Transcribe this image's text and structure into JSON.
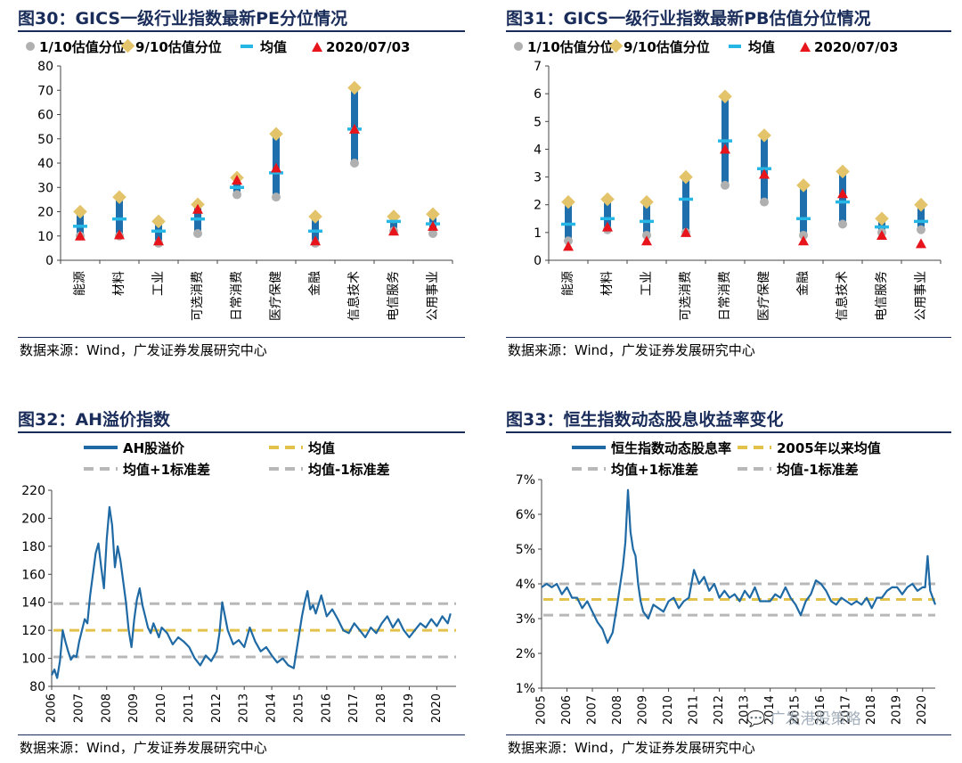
{
  "panels": [
    {
      "title": "图30：GICS一级行业指数最新PE分位情况",
      "source": "数据来源：Wind，广发证券发展研究中心"
    },
    {
      "title": "图31：GICS一级行业指数最新PB估值分位情况",
      "source": "数据来源：Wind，广发证券发展研究中心"
    },
    {
      "title": "图32：AH溢价指数",
      "source": "数据来源：Wind，广发证券发展研究中心"
    },
    {
      "title": "图33：恒生指数动态股息收益率变化",
      "source": "数据来源：Wind，广发证券发展研究中心"
    }
  ],
  "watermark": "广发港股策略",
  "colors": {
    "title": "#1a2d5a",
    "bar": "#1f6fad",
    "mean_tick": "#27b7e6",
    "p10": "#b0b0b0",
    "p90": "#e3c46a",
    "current": "#e8141b",
    "series": "#1f6aa5",
    "mean_line": "#e3c24c",
    "std_line": "#b8b8b8"
  },
  "chart_data": [
    {
      "type": "range",
      "title": "GICS一级行业指数最新PE分位情况",
      "legend": [
        "1/10估值分位",
        "9/10估值分位",
        "均值",
        "2020/07/03"
      ],
      "categories": [
        "能源",
        "材料",
        "工业",
        "可选消费",
        "日常消费",
        "医疗保健",
        "金融",
        "信息技术",
        "电信服务",
        "公用事业"
      ],
      "p10": [
        10,
        10,
        7,
        11,
        27,
        26,
        7,
        40,
        12,
        11
      ],
      "p90": [
        20,
        26,
        16,
        23,
        34,
        52,
        18,
        71,
        18,
        19
      ],
      "mean": [
        14,
        17,
        12,
        17,
        30,
        36,
        12,
        54,
        16,
        15
      ],
      "current": [
        10,
        10.5,
        8,
        21,
        33,
        38,
        8,
        54,
        12,
        14
      ],
      "ylim": [
        0,
        80
      ],
      "yticks": [
        0,
        10,
        20,
        30,
        40,
        50,
        60,
        70,
        80
      ],
      "ytick_labels": [
        "0",
        "10",
        "20",
        "30",
        "40",
        "50",
        "60",
        "70",
        "80"
      ]
    },
    {
      "type": "range",
      "title": "GICS一级行业指数最新PB估值分位情况",
      "legend": [
        "1/10估值分位",
        "9/10估值分位",
        "均值",
        "2020/07/03"
      ],
      "categories": [
        "能源",
        "材料",
        "工业",
        "可选消费",
        "日常消费",
        "医疗保健",
        "金融",
        "信息技术",
        "电信服务",
        "公用事业"
      ],
      "p10": [
        0.7,
        1.1,
        0.9,
        1.0,
        2.7,
        2.1,
        0.9,
        1.3,
        1.0,
        1.1
      ],
      "p90": [
        2.1,
        2.2,
        2.1,
        3.0,
        5.9,
        4.5,
        2.7,
        3.2,
        1.5,
        2.0
      ],
      "mean": [
        1.3,
        1.5,
        1.4,
        2.2,
        4.3,
        3.3,
        1.5,
        2.1,
        1.2,
        1.4
      ],
      "current": [
        0.5,
        1.2,
        0.7,
        1.0,
        4.0,
        3.1,
        0.7,
        2.4,
        0.9,
        0.6
      ],
      "ylim": [
        0,
        7
      ],
      "yticks": [
        0,
        1,
        2,
        3,
        4,
        5,
        6,
        7
      ],
      "ytick_labels": [
        "0",
        "1",
        "2",
        "3",
        "4",
        "5",
        "6",
        "7"
      ]
    },
    {
      "type": "line",
      "title": "AH溢价指数",
      "legend": [
        "AH股溢价",
        "均值",
        "均值+1标准差",
        "均值-1标准差"
      ],
      "x": [
        2006.0,
        2006.1,
        2006.2,
        2006.3,
        2006.4,
        2006.5,
        2006.6,
        2006.7,
        2006.8,
        2006.9,
        2007.0,
        2007.1,
        2007.2,
        2007.3,
        2007.4,
        2007.5,
        2007.6,
        2007.7,
        2007.8,
        2007.9,
        2008.0,
        2008.1,
        2008.2,
        2008.3,
        2008.4,
        2008.5,
        2008.6,
        2008.7,
        2008.8,
        2008.9,
        2009.0,
        2009.1,
        2009.2,
        2009.3,
        2009.4,
        2009.5,
        2009.6,
        2009.7,
        2009.8,
        2009.9,
        2010.0,
        2010.2,
        2010.4,
        2010.6,
        2010.8,
        2011.0,
        2011.2,
        2011.4,
        2011.6,
        2011.8,
        2012.0,
        2012.1,
        2012.2,
        2012.4,
        2012.6,
        2012.8,
        2013.0,
        2013.2,
        2013.4,
        2013.6,
        2013.8,
        2014.0,
        2014.2,
        2014.4,
        2014.6,
        2014.8,
        2015.0,
        2015.1,
        2015.2,
        2015.3,
        2015.4,
        2015.5,
        2015.6,
        2015.8,
        2016.0,
        2016.2,
        2016.4,
        2016.6,
        2016.8,
        2017.0,
        2017.2,
        2017.4,
        2017.6,
        2017.8,
        2018.0,
        2018.2,
        2018.4,
        2018.6,
        2018.8,
        2019.0,
        2019.2,
        2019.4,
        2019.6,
        2019.8,
        2020.0,
        2020.2,
        2020.4,
        2020.5
      ],
      "y": [
        88,
        92,
        86,
        98,
        120,
        112,
        105,
        99,
        102,
        101,
        112,
        120,
        128,
        125,
        145,
        160,
        175,
        182,
        165,
        150,
        185,
        208,
        195,
        165,
        180,
        170,
        155,
        140,
        120,
        108,
        128,
        142,
        150,
        138,
        130,
        122,
        118,
        125,
        120,
        115,
        122,
        118,
        110,
        115,
        112,
        108,
        100,
        95,
        102,
        98,
        105,
        118,
        140,
        120,
        110,
        113,
        108,
        122,
        112,
        105,
        108,
        102,
        97,
        100,
        95,
        93,
        118,
        130,
        140,
        148,
        135,
        138,
        132,
        145,
        130,
        135,
        128,
        120,
        118,
        125,
        120,
        115,
        122,
        118,
        125,
        130,
        122,
        128,
        120,
        115,
        120,
        125,
        122,
        128,
        123,
        130,
        125,
        132
      ],
      "mean": 120,
      "upper": 139,
      "lower": 101,
      "xlim": [
        2006,
        2020.7
      ],
      "ylim": [
        80,
        220
      ],
      "yticks": [
        80,
        100,
        120,
        140,
        160,
        180,
        200,
        220
      ],
      "ytick_labels": [
        "80",
        "100",
        "120",
        "140",
        "160",
        "180",
        "200",
        "220"
      ],
      "xticks": [
        2006,
        2007,
        2008,
        2009,
        2010,
        2011,
        2012,
        2013,
        2014,
        2015,
        2016,
        2017,
        2018,
        2019,
        2020
      ],
      "xtick_labels": [
        "2006",
        "2007",
        "2008",
        "2009",
        "2010",
        "2011",
        "2012",
        "2013",
        "2014",
        "2015",
        "2016",
        "2017",
        "2018",
        "2019",
        "2020"
      ]
    },
    {
      "type": "line",
      "title": "恒生指数动态股息收益率变化",
      "legend": [
        "恒生指数动态股息率",
        "2005年以来均值",
        "均值+1标准差",
        "均值-1标准差"
      ],
      "x": [
        2005.0,
        2005.2,
        2005.4,
        2005.6,
        2005.8,
        2006.0,
        2006.2,
        2006.4,
        2006.6,
        2006.8,
        2007.0,
        2007.2,
        2007.4,
        2007.6,
        2007.8,
        2008.0,
        2008.1,
        2008.2,
        2008.3,
        2008.4,
        2008.5,
        2008.6,
        2008.7,
        2008.8,
        2008.9,
        2009.0,
        2009.2,
        2009.4,
        2009.6,
        2009.8,
        2010.0,
        2010.2,
        2010.4,
        2010.6,
        2010.8,
        2011.0,
        2011.2,
        2011.4,
        2011.6,
        2011.8,
        2012.0,
        2012.2,
        2012.4,
        2012.6,
        2012.8,
        2013.0,
        2013.2,
        2013.4,
        2013.6,
        2013.8,
        2014.0,
        2014.2,
        2014.4,
        2014.6,
        2014.8,
        2015.0,
        2015.2,
        2015.4,
        2015.6,
        2015.8,
        2016.0,
        2016.2,
        2016.4,
        2016.6,
        2016.8,
        2017.0,
        2017.2,
        2017.4,
        2017.6,
        2017.8,
        2018.0,
        2018.2,
        2018.4,
        2018.6,
        2018.8,
        2019.0,
        2019.2,
        2019.4,
        2019.6,
        2019.8,
        2020.0,
        2020.1,
        2020.2,
        2020.3,
        2020.5
      ],
      "y": [
        3.9,
        4.0,
        3.9,
        4.0,
        3.7,
        3.9,
        3.6,
        3.6,
        3.3,
        3.5,
        3.2,
        2.9,
        2.7,
        2.3,
        2.6,
        3.5,
        4.0,
        4.5,
        5.2,
        6.7,
        5.5,
        5.0,
        4.8,
        4.0,
        3.5,
        3.2,
        3.0,
        3.4,
        3.3,
        3.2,
        3.5,
        3.6,
        3.3,
        3.5,
        3.6,
        4.4,
        4.0,
        4.2,
        3.8,
        4.0,
        3.6,
        3.8,
        3.6,
        3.7,
        3.5,
        3.8,
        3.6,
        3.9,
        3.5,
        3.5,
        3.5,
        3.7,
        3.6,
        3.9,
        3.6,
        3.4,
        3.1,
        3.5,
        3.7,
        4.1,
        4.0,
        3.8,
        3.5,
        3.4,
        3.6,
        3.5,
        3.4,
        3.5,
        3.4,
        3.6,
        3.3,
        3.6,
        3.6,
        3.8,
        3.9,
        3.9,
        3.7,
        3.9,
        4.0,
        3.8,
        3.9,
        3.9,
        4.8,
        3.8,
        3.4
      ],
      "mean": 3.55,
      "upper": 4.0,
      "lower": 3.1,
      "xlim": [
        2005,
        2020.5
      ],
      "ylim": [
        1,
        7
      ],
      "yticks": [
        1,
        2,
        3,
        4,
        5,
        6,
        7
      ],
      "ytick_labels": [
        "1%",
        "2%",
        "3%",
        "4%",
        "5%",
        "6%",
        "7%"
      ],
      "xticks": [
        2005,
        2006,
        2007,
        2008,
        2009,
        2010,
        2011,
        2012,
        2013,
        2014,
        2015,
        2016,
        2017,
        2018,
        2019,
        2020
      ],
      "xtick_labels": [
        "2005",
        "2006",
        "2007",
        "2008",
        "2009",
        "2010",
        "2011",
        "2012",
        "2013",
        "2014",
        "2015",
        "2016",
        "2017",
        "2018",
        "2019",
        "2020"
      ]
    }
  ]
}
